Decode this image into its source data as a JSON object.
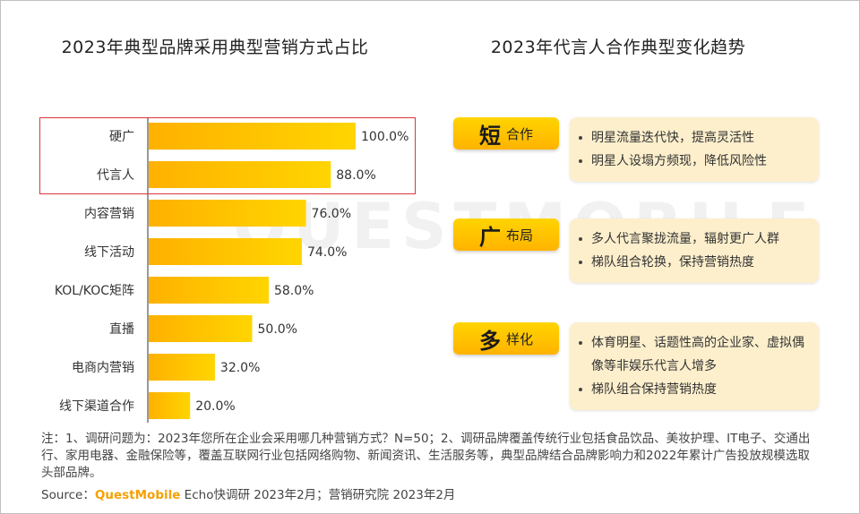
{
  "left_title": "2023年典型品牌采用典型营销方式占比",
  "right_title": "2023年代言人合作典型变化趋势",
  "watermark": "QUESTMOBILE",
  "chart_data": {
    "type": "bar",
    "orientation": "horizontal",
    "title": "2023年典型品牌采用典型营销方式占比",
    "categories": [
      "硬广",
      "代言人",
      "内容营销",
      "线下活动",
      "KOL/KOC矩阵",
      "直播",
      "电商内营销",
      "线下渠道合作"
    ],
    "values": [
      100.0,
      88.0,
      76.0,
      74.0,
      58.0,
      50.0,
      32.0,
      20.0
    ],
    "value_labels": [
      "100.0%",
      "88.0%",
      "76.0%",
      "74.0%",
      "58.0%",
      "50.0%",
      "32.0%",
      "20.0%"
    ],
    "xlim": [
      0,
      100
    ],
    "grid": false,
    "bar_color": "#ffc200",
    "highlighted_categories": [
      "硬广",
      "代言人"
    ],
    "highlight_color": "#d9363e"
  },
  "trends": [
    {
      "big": "短",
      "small": "合作",
      "points": [
        "明星流量迭代快，提高灵活性",
        "明星人设塌方频现，降低风险性"
      ]
    },
    {
      "big": "广",
      "small": "布局",
      "points": [
        "多人代言聚拢流量，辐射更广人群",
        "梯队组合轮换，保持营销热度"
      ]
    },
    {
      "big": "多",
      "small": "样化",
      "points": [
        "体育明星、话题性高的企业家、虚拟偶像等非娱乐代言人增多",
        "梯队组合保持营销热度"
      ]
    }
  ],
  "note": "注：1、调研问题为：2023年您所在企业会采用哪几种营销方式？N=50；2、调研品牌覆盖传统行业包括食品饮品、美妆护理、IT电子、交通出行、家用电器、金融保险等，覆盖互联网行业包括网络购物、新闻资讯、生活服务等，典型品牌结合品牌影响力和2022年累计广告投放规模选取头部品牌。",
  "source": {
    "prefix": "Source：",
    "brand": "QuestMobile",
    "rest": " Echo快调研 2023年2月；营销研究院 2023年2月"
  },
  "colors": {
    "accent": "#ffc200",
    "card_bg": "#fdefcc",
    "highlight": "#d9363e"
  }
}
